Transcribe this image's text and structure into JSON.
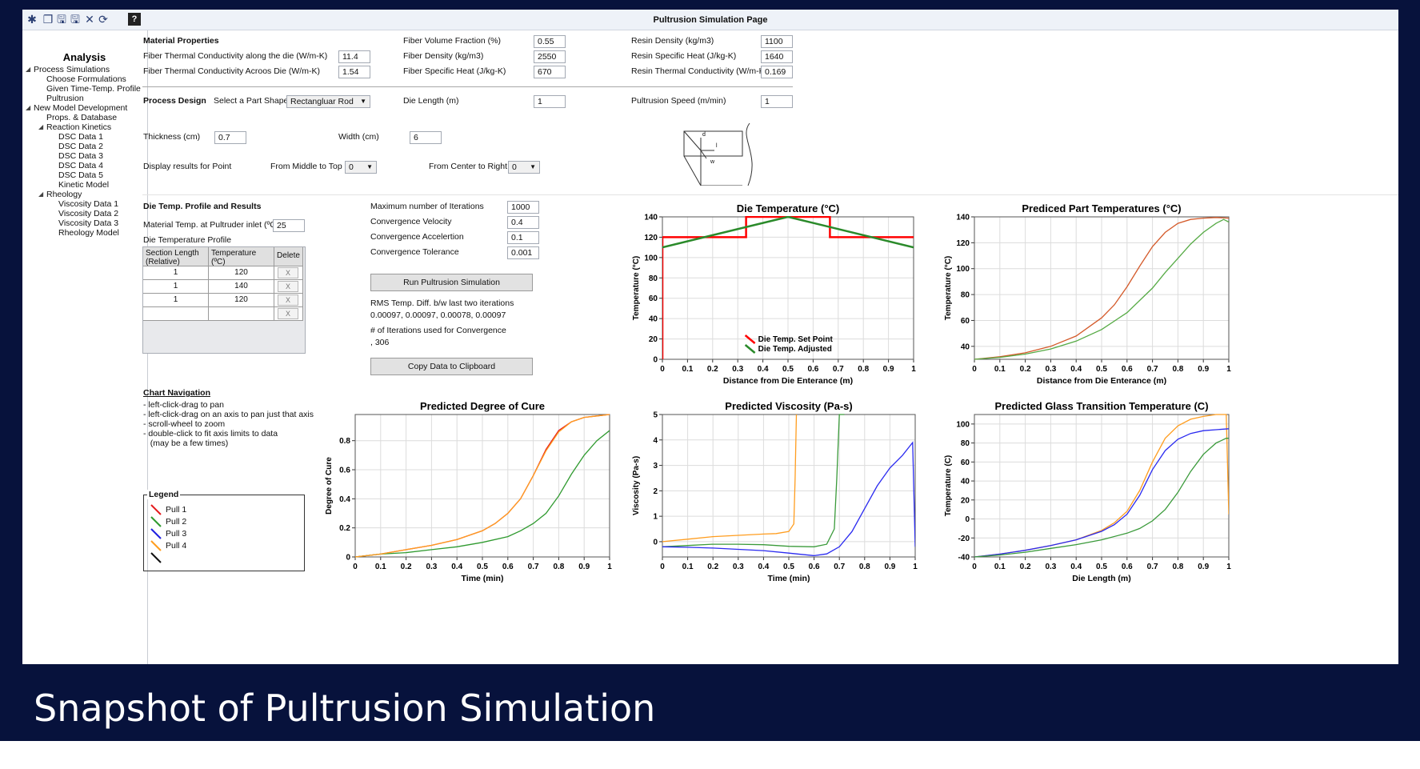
{
  "caption": "Snapshot of Pultrusion Simulation",
  "window_title": "Pultrusion Simulation Page",
  "toolbar": {
    "icons": [
      "new-icon",
      "open-icon",
      "save-icon",
      "save-as-icon",
      "close-icon",
      "refresh-icon",
      "help-icon"
    ],
    "glyphs": [
      "✱",
      "❐",
      "🖫",
      "🖫",
      "✕",
      "⟳",
      "?"
    ]
  },
  "sidebar": {
    "title": "Analysis",
    "items": [
      {
        "label": "Process Simulations",
        "level": 0,
        "arrow": "◢"
      },
      {
        "label": "Choose Formulations",
        "level": 1
      },
      {
        "label": "Given Time-Temp. Profile",
        "level": 1
      },
      {
        "label": "Pultrusion",
        "level": 1
      },
      {
        "label": "New Model Development",
        "level": 0,
        "arrow": "◢"
      },
      {
        "label": "Props. & Database",
        "level": 1
      },
      {
        "label": "Reaction Kinetics",
        "level": 1,
        "arrow": "◢"
      },
      {
        "label": "DSC Data 1",
        "level": 2
      },
      {
        "label": "DSC Data 2",
        "level": 2
      },
      {
        "label": "DSC Data 3",
        "level": 2
      },
      {
        "label": "DSC Data 4",
        "level": 2
      },
      {
        "label": "DSC Data 5",
        "level": 2
      },
      {
        "label": "Kinetic Model",
        "level": 2
      },
      {
        "label": "Rheology",
        "level": 1,
        "arrow": "◢"
      },
      {
        "label": "Viscosity Data 1",
        "level": 2
      },
      {
        "label": "Viscosity Data 2",
        "level": 2
      },
      {
        "label": "Viscosity Data 3",
        "level": 2
      },
      {
        "label": "Rheology Model",
        "level": 2
      }
    ]
  },
  "material": {
    "header": "Material Properties",
    "fields": [
      {
        "label": "Fiber Thermal Conductivity along the die (W/m-K)",
        "value": "11.4"
      },
      {
        "label": "Fiber Thermal Conductivity Acroos Die (W/m-K)",
        "value": "1.54"
      },
      {
        "label": "Fiber Volume Fraction (%)",
        "value": "0.55"
      },
      {
        "label": "Fiber Density (kg/m3)",
        "value": "2550"
      },
      {
        "label": "Fiber Specific Heat (J/kg-K)",
        "value": "670"
      },
      {
        "label": "Resin Density (kg/m3)",
        "value": "1100"
      },
      {
        "label": "Resin Specific Heat (J/kg-K)",
        "value": "1640"
      },
      {
        "label": "Resin Thermal Conductivity (W/m-K)",
        "value": "0.169"
      }
    ]
  },
  "process": {
    "header": "Process Design",
    "shape_label": "Select a Part Shape",
    "shape_value": "Rectangluar Rod",
    "die_length_label": "Die Length (m)",
    "die_length": "1",
    "speed_label": "Pultrusion Speed (m/min)",
    "speed": "1",
    "thickness_label": "Thickness (cm)",
    "thickness": "0.7",
    "width_label": "Width (cm)",
    "width": "6",
    "display_label": "Display results for Point",
    "mid_top_label": "From Middle to Top",
    "mid_top": "0",
    "center_right_label": "From Center to Right",
    "center_right": "0",
    "diagram_labels": [
      "d",
      "l",
      "w"
    ]
  },
  "die": {
    "header": "Die Temp. Profile and Results",
    "inlet_label": "Material Temp. at Pultruder inlet (ºC)",
    "inlet": "25",
    "profile_label": "Die Temperature Profile",
    "table_headers": [
      "Section Length\n(Relative)",
      "Temperature\n(ºC)",
      "Delete"
    ],
    "rows": [
      [
        "1",
        "120",
        "X"
      ],
      [
        "1",
        "140",
        "X"
      ],
      [
        "1",
        "120",
        "X"
      ],
      [
        "",
        "",
        "X"
      ]
    ]
  },
  "solver": {
    "fields": [
      {
        "label": "Maximum number of Iterations",
        "value": "1000"
      },
      {
        "label": "Convergence Velocity",
        "value": "0.4"
      },
      {
        "label": "Convergence Accelertion",
        "value": "0.1"
      },
      {
        "label": "Convergence Tolerance",
        "value": "0.001"
      }
    ],
    "run_button": "Run Pultrusion Simulation",
    "rms_label": "RMS Temp. Diff. b/w last two iterations",
    "rms_values": "0.00097, 0.00097, 0.00078, 0.00097",
    "iter_label": "# of Iterations used for Convergence",
    "iter_value": ", 306",
    "copy_button": "Copy Data to Clipboard"
  },
  "nav": {
    "header": "Chart Navigation",
    "lines": [
      "- left-click-drag to pan",
      "- left-click-drag on an axis to pan just that axis",
      "- scroll-wheel to zoom",
      "- double-click to fit axis limits to data",
      "   (may be a few times)"
    ]
  },
  "legend": {
    "title": "Legend",
    "items": [
      {
        "label": "Pull 1",
        "color": "#e41a1c"
      },
      {
        "label": "Pull 2",
        "color": "#2f9a2f"
      },
      {
        "label": "Pull 3",
        "color": "#2020e0"
      },
      {
        "label": "Pull 4",
        "color": "#ff9d1f"
      },
      {
        "label": "",
        "color": "#111111"
      }
    ]
  },
  "chart_data": [
    {
      "id": "die-temp",
      "type": "line",
      "title": "Die Temperature  (°C)",
      "xlabel": "Distance from Die Enterance (m)",
      "ylabel": "Temperature (°C)",
      "xlim": [
        0,
        1
      ],
      "ylim": [
        0,
        140
      ],
      "xticks": [
        "0",
        "0.1",
        "0.2",
        "0.3",
        "0.4",
        "0.5",
        "0.6",
        "0.7",
        "0.8",
        "0.9",
        "1"
      ],
      "yticks": [
        "0",
        "20",
        "40",
        "60",
        "80",
        "100",
        "120",
        "140"
      ],
      "grid": true,
      "legend": "bottom-center",
      "series": [
        {
          "name": "Die Temp. Set Point",
          "color": "#ff0000",
          "x": [
            0,
            0,
            0.333,
            0.333,
            0.667,
            0.667,
            1
          ],
          "y": [
            0,
            120,
            120,
            140,
            140,
            120,
            120
          ]
        },
        {
          "name": "Die Temp. Adjusted",
          "color": "#2a8a2a",
          "x": [
            0,
            0.5,
            1
          ],
          "y": [
            110,
            140,
            110
          ]
        }
      ]
    },
    {
      "id": "part-temp",
      "type": "line",
      "title": "Prediced Part Temperatures (°C)",
      "xlabel": "Distance from Die Enterance (m)",
      "ylabel": "Temperature (°C)",
      "xlim": [
        0,
        1
      ],
      "ylim": [
        30,
        140
      ],
      "xticks": [
        "0",
        "0.1",
        "0.2",
        "0.3",
        "0.4",
        "0.5",
        "0.6",
        "0.7",
        "0.8",
        "0.9",
        "1"
      ],
      "yticks": [
        "40",
        "60",
        "80",
        "100",
        "120",
        "140"
      ],
      "grid": true,
      "series": [
        {
          "color": "#d45a2a",
          "x": [
            0,
            0.1,
            0.2,
            0.3,
            0.4,
            0.5,
            0.55,
            0.6,
            0.65,
            0.7,
            0.75,
            0.8,
            0.85,
            0.9,
            0.95,
            1
          ],
          "y": [
            30,
            32,
            35,
            40,
            48,
            62,
            72,
            86,
            102,
            117,
            128,
            135,
            138,
            139,
            139.5,
            139
          ]
        },
        {
          "color": "#55aa44",
          "x": [
            0,
            0.1,
            0.2,
            0.3,
            0.4,
            0.5,
            0.6,
            0.7,
            0.75,
            0.8,
            0.85,
            0.9,
            0.95,
            0.98,
            1
          ],
          "y": [
            30,
            31.5,
            34,
            38,
            44,
            53,
            66,
            85,
            97,
            108,
            119,
            128,
            135,
            138,
            136
          ]
        }
      ]
    },
    {
      "id": "cure",
      "type": "line",
      "title": "Predicted Degree of Cure",
      "xlabel": "Time (min)",
      "ylabel": "Degree of Cure",
      "xlim": [
        0,
        1
      ],
      "ylim": [
        0,
        0.98
      ],
      "xticks": [
        "0",
        "0.1",
        "0.2",
        "0.3",
        "0.4",
        "0.5",
        "0.6",
        "0.7",
        "0.8",
        "0.9",
        "1"
      ],
      "yticks": [
        "0",
        "0.2",
        "0.4",
        "0.6",
        "0.8"
      ],
      "grid": true,
      "series": [
        {
          "color": "#e41a1c",
          "x": [
            0,
            0.1,
            0.2,
            0.3,
            0.4,
            0.5,
            0.55,
            0.6,
            0.65,
            0.7,
            0.75,
            0.8,
            0.85,
            0.9,
            0.95,
            1
          ],
          "y": [
            0,
            0.02,
            0.05,
            0.08,
            0.12,
            0.18,
            0.23,
            0.3,
            0.4,
            0.56,
            0.74,
            0.87,
            0.93,
            0.96,
            0.97,
            0.98
          ]
        },
        {
          "color": "#2f9a2f",
          "x": [
            0,
            0.1,
            0.2,
            0.3,
            0.4,
            0.5,
            0.6,
            0.65,
            0.7,
            0.75,
            0.8,
            0.85,
            0.9,
            0.95,
            1
          ],
          "y": [
            0,
            0.02,
            0.03,
            0.05,
            0.07,
            0.1,
            0.14,
            0.18,
            0.23,
            0.3,
            0.42,
            0.57,
            0.7,
            0.8,
            0.87
          ]
        },
        {
          "color": "#ff9d1f",
          "x": [
            0,
            0.1,
            0.2,
            0.3,
            0.4,
            0.5,
            0.55,
            0.6,
            0.65,
            0.7,
            0.75,
            0.8,
            0.85,
            0.9,
            0.95,
            1
          ],
          "y": [
            0,
            0.02,
            0.05,
            0.08,
            0.12,
            0.18,
            0.23,
            0.3,
            0.4,
            0.56,
            0.73,
            0.86,
            0.93,
            0.96,
            0.97,
            0.98
          ]
        }
      ]
    },
    {
      "id": "viscosity",
      "type": "line",
      "title": "Predicted Viscosity (Pa-s)",
      "xlabel": "Time (min)",
      "ylabel": "Viscosity (Pa-s)",
      "xlim": [
        0,
        1
      ],
      "ylim": [
        -0.6,
        5
      ],
      "xticks": [
        "0",
        "0.1",
        "0.2",
        "0.3",
        "0.4",
        "0.5",
        "0.6",
        "0.7",
        "0.8",
        "0.9",
        "1"
      ],
      "yticks": [
        "0",
        "1",
        "2",
        "3",
        "4",
        "5"
      ],
      "grid": true,
      "series": [
        {
          "color": "#ff9d1f",
          "x": [
            0,
            0.1,
            0.2,
            0.3,
            0.4,
            0.45,
            0.5,
            0.52,
            0.525,
            0.53
          ],
          "y": [
            0,
            0.1,
            0.2,
            0.25,
            0.3,
            0.32,
            0.4,
            0.7,
            2.5,
            5
          ]
        },
        {
          "color": "#3a9a3a",
          "x": [
            0,
            0.1,
            0.2,
            0.3,
            0.4,
            0.5,
            0.6,
            0.65,
            0.68,
            0.69,
            0.7,
            0.72
          ],
          "y": [
            -0.2,
            -0.15,
            -0.1,
            -0.1,
            -0.12,
            -0.18,
            -0.2,
            -0.1,
            0.5,
            2.5,
            5,
            5
          ]
        },
        {
          "color": "#2a2af0",
          "x": [
            0,
            0.1,
            0.2,
            0.3,
            0.4,
            0.5,
            0.55,
            0.6,
            0.65,
            0.7,
            0.75,
            0.8,
            0.85,
            0.9,
            0.95,
            0.99,
            1
          ],
          "y": [
            -0.2,
            -0.22,
            -0.25,
            -0.3,
            -0.35,
            -0.45,
            -0.5,
            -0.55,
            -0.48,
            -0.2,
            0.4,
            1.3,
            2.2,
            2.9,
            3.4,
            3.9,
            -0.2
          ]
        }
      ]
    },
    {
      "id": "tg",
      "type": "line",
      "title": "Predicted Glass Transition Temperature (C)",
      "xlabel": "Die Length (m)",
      "ylabel": "Temperature (C)",
      "xlim": [
        0,
        1
      ],
      "ylim": [
        -40,
        110
      ],
      "xticks": [
        "0",
        "0.1",
        "0.2",
        "0.3",
        "0.4",
        "0.5",
        "0.6",
        "0.7",
        "0.8",
        "0.9",
        "1"
      ],
      "yticks": [
        "-40",
        "-20",
        "0",
        "20",
        "40",
        "60",
        "80",
        "100"
      ],
      "grid": true,
      "series": [
        {
          "color": "#ff9d1f",
          "x": [
            0,
            0.1,
            0.2,
            0.3,
            0.4,
            0.5,
            0.55,
            0.6,
            0.65,
            0.7,
            0.75,
            0.8,
            0.85,
            0.9,
            0.95,
            0.99,
            1
          ],
          "y": [
            -40,
            -37,
            -33,
            -28,
            -22,
            -12,
            -4,
            8,
            30,
            60,
            85,
            98,
            105,
            108,
            110,
            110,
            5
          ]
        },
        {
          "color": "#2a2af0",
          "x": [
            0,
            0.1,
            0.2,
            0.3,
            0.4,
            0.5,
            0.55,
            0.6,
            0.65,
            0.7,
            0.75,
            0.8,
            0.85,
            0.9,
            0.95,
            1
          ],
          "y": [
            -40,
            -37,
            -33,
            -28,
            -22,
            -13,
            -6,
            5,
            25,
            52,
            72,
            84,
            90,
            93,
            94,
            95
          ]
        },
        {
          "color": "#3a9a3a",
          "x": [
            0,
            0.1,
            0.2,
            0.3,
            0.4,
            0.5,
            0.6,
            0.65,
            0.7,
            0.75,
            0.8,
            0.85,
            0.9,
            0.95,
            0.99,
            1
          ],
          "y": [
            -40,
            -38,
            -35,
            -31,
            -27,
            -22,
            -15,
            -10,
            -2,
            10,
            28,
            50,
            68,
            80,
            85,
            85
          ]
        }
      ]
    }
  ]
}
